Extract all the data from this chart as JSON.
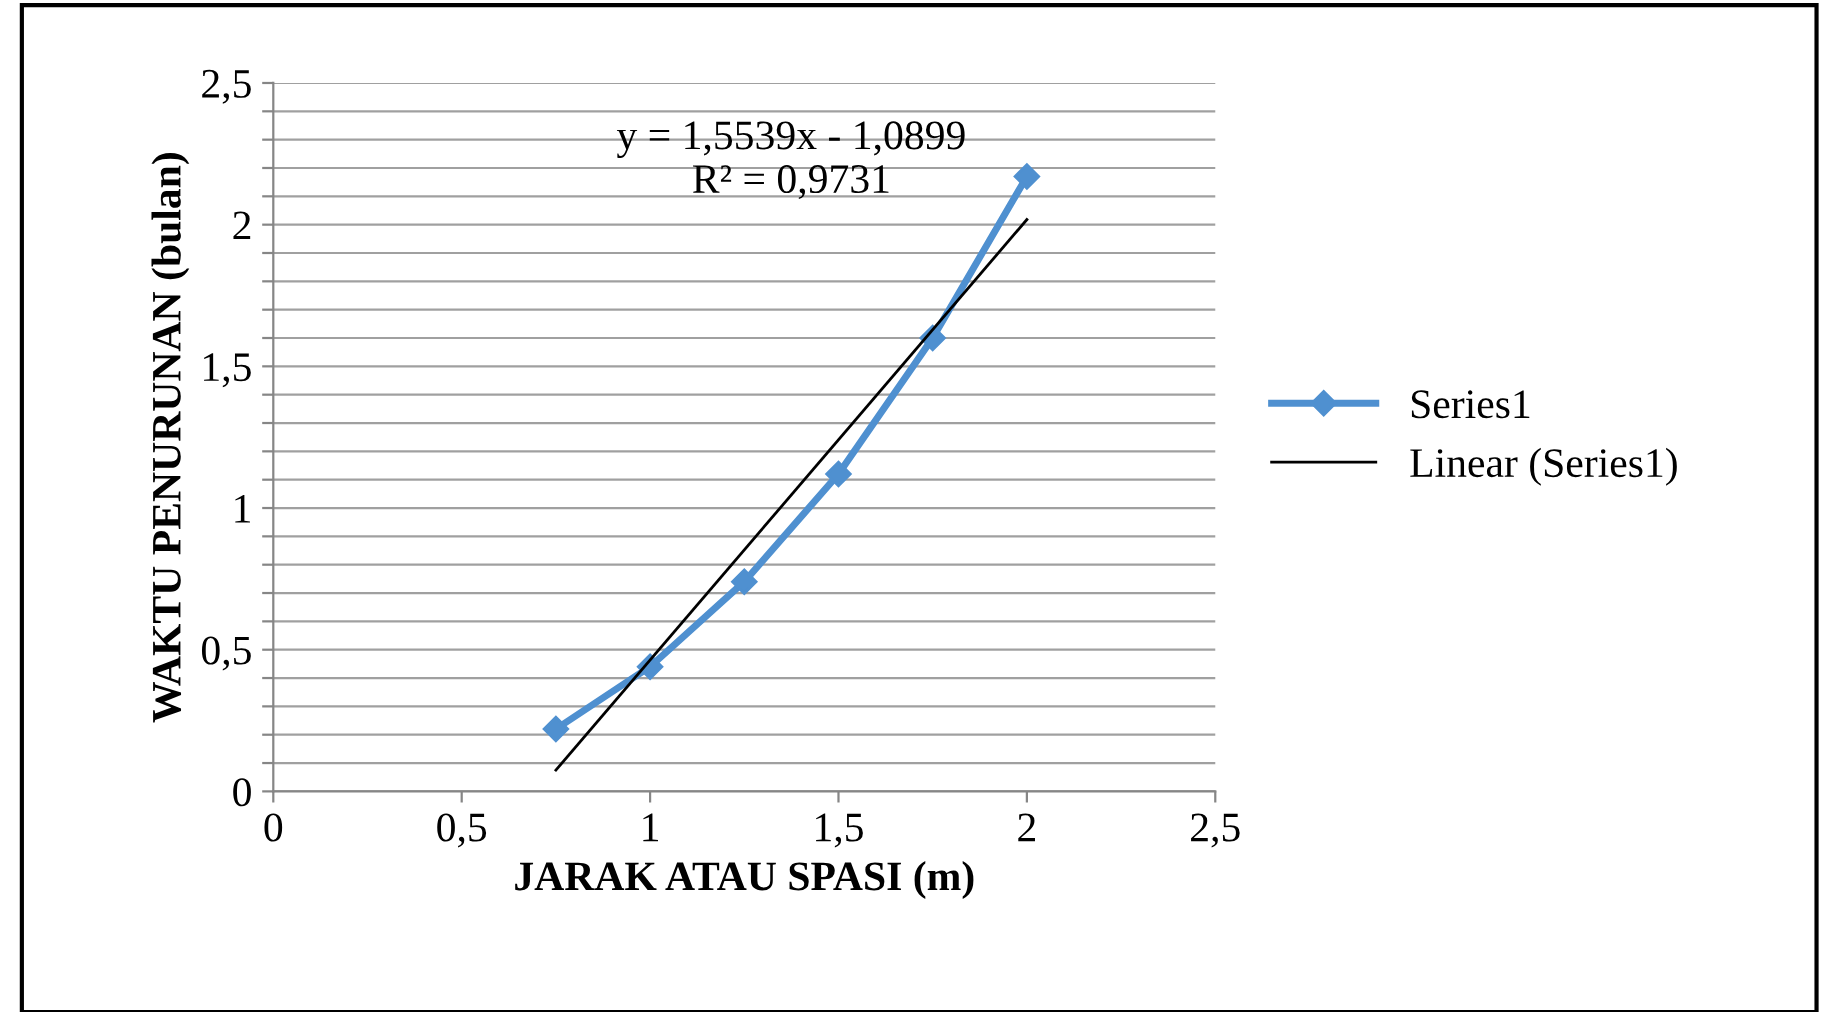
{
  "chart_data": {
    "type": "line",
    "xlabel": "JARAK ATAU SPASI (m)",
    "ylabel": "WAKTU PENURUNAN (bulan)",
    "x": [
      0.75,
      1,
      1.25,
      1.5,
      1.75,
      2
    ],
    "series": [
      {
        "name": "Series1",
        "color": "#4f90d0",
        "marker": "diamond",
        "values": [
          0.22,
          0.44,
          0.74,
          1.12,
          1.6,
          2.17
        ]
      },
      {
        "name": "Linear (Series1)",
        "color": "#000000",
        "marker": "none",
        "x": [
          0.75,
          2
        ],
        "values": [
          0.075,
          2.018
        ]
      }
    ],
    "annotations": [
      "y = 1,5539x - 1,0899\nR² = 0,9731"
    ],
    "xlim": [
      0,
      2.5
    ],
    "xticks": [
      {
        "value": 0,
        "label": "0"
      },
      {
        "value": 0.5,
        "label": "0,5"
      },
      {
        "value": 1,
        "label": "1"
      },
      {
        "value": 1.5,
        "label": "1,5"
      },
      {
        "value": 2,
        "label": "2"
      },
      {
        "value": 2.5,
        "label": "2,5"
      }
    ],
    "ylim": [
      0,
      2.5
    ],
    "yticks": [
      {
        "value": 0,
        "label": "0"
      },
      {
        "value": 0.1,
        "label": null
      },
      {
        "value": 0.2,
        "label": null
      },
      {
        "value": 0.3,
        "label": null
      },
      {
        "value": 0.4,
        "label": null
      },
      {
        "value": 0.5,
        "label": "0,5"
      },
      {
        "value": 0.6,
        "label": null
      },
      {
        "value": 0.7,
        "label": null
      },
      {
        "value": 0.8,
        "label": null
      },
      {
        "value": 0.9,
        "label": null
      },
      {
        "value": 1,
        "label": "1"
      },
      {
        "value": 1.1,
        "label": null
      },
      {
        "value": 1.2,
        "label": null
      },
      {
        "value": 1.3,
        "label": null
      },
      {
        "value": 1.4,
        "label": null
      },
      {
        "value": 1.5,
        "label": "1,5"
      },
      {
        "value": 1.6,
        "label": null
      },
      {
        "value": 1.7,
        "label": null
      },
      {
        "value": 1.8,
        "label": null
      },
      {
        "value": 1.9,
        "label": null
      },
      {
        "value": 2,
        "label": "2"
      },
      {
        "value": 2.1,
        "label": null
      },
      {
        "value": 2.2,
        "label": null
      },
      {
        "value": 2.3,
        "label": null
      },
      {
        "value": 2.4,
        "label": null
      },
      {
        "value": 2.5,
        "label": "2,5"
      }
    ],
    "grid": true,
    "legend": "right"
  }
}
